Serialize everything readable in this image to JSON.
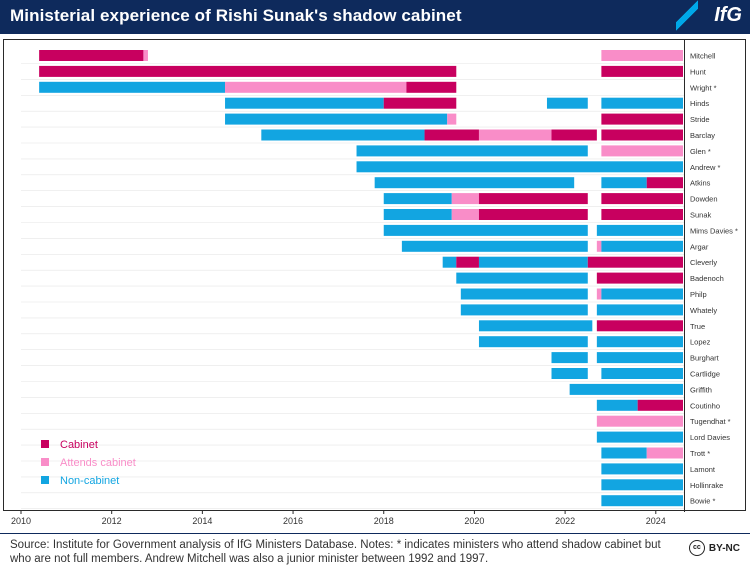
{
  "title": "Ministerial experience of Rishi Sunak's shadow cabinet",
  "logo": "IfG",
  "source": "Source: Institute for Government analysis of IfG Ministers Database. Notes: * indicates ministers who attend shadow cabinet but who are not full members. Andrew Mitchell was also a junior minister between 1992 and 1997.",
  "license": "BY-NC",
  "license_icon": "cc",
  "colors": {
    "Cabinet": "#c8005f",
    "Attends cabinet": "#f98dc8",
    "Non-cabinet": "#12a5e1"
  },
  "chart_data": {
    "type": "bar",
    "orientation": "horizontal-timeline",
    "title": "Ministerial experience of Rishi Sunak's shadow cabinet",
    "xlabel": "",
    "ylabel": "",
    "xlim": [
      2010,
      2025
    ],
    "xticks": [
      2010,
      2012,
      2014,
      2016,
      2018,
      2020,
      2022,
      2024
    ],
    "legend": [
      "Cabinet",
      "Attends cabinet",
      "Non-cabinet"
    ],
    "legend_position": "bottom-left",
    "rows": [
      {
        "name": "Mitchell",
        "segments": [
          [
            2010.4,
            2012.7,
            "Cabinet"
          ],
          [
            2012.7,
            2012.8,
            "Attends cabinet"
          ],
          [
            2022.8,
            2024.6,
            "Attends cabinet"
          ]
        ]
      },
      {
        "name": "Hunt",
        "segments": [
          [
            2010.4,
            2019.6,
            "Cabinet"
          ],
          [
            2022.8,
            2024.6,
            "Cabinet"
          ]
        ]
      },
      {
        "name": "Wright *",
        "segments": [
          [
            2010.4,
            2014.5,
            "Non-cabinet"
          ],
          [
            2014.5,
            2018.5,
            "Attends cabinet"
          ],
          [
            2018.5,
            2019.6,
            "Cabinet"
          ]
        ]
      },
      {
        "name": "Hinds",
        "segments": [
          [
            2014.5,
            2018.0,
            "Non-cabinet"
          ],
          [
            2018.0,
            2019.6,
            "Cabinet"
          ],
          [
            2021.6,
            2022.5,
            "Non-cabinet"
          ],
          [
            2022.8,
            2024.6,
            "Non-cabinet"
          ]
        ]
      },
      {
        "name": "Stride",
        "segments": [
          [
            2014.5,
            2019.4,
            "Non-cabinet"
          ],
          [
            2019.4,
            2019.6,
            "Attends cabinet"
          ],
          [
            2022.8,
            2024.6,
            "Cabinet"
          ]
        ]
      },
      {
        "name": "Barclay",
        "segments": [
          [
            2015.3,
            2018.9,
            "Non-cabinet"
          ],
          [
            2018.9,
            2020.1,
            "Cabinet"
          ],
          [
            2020.1,
            2021.7,
            "Attends cabinet"
          ],
          [
            2021.7,
            2022.7,
            "Cabinet"
          ],
          [
            2022.8,
            2024.6,
            "Cabinet"
          ]
        ]
      },
      {
        "name": "Glen *",
        "segments": [
          [
            2017.4,
            2022.5,
            "Non-cabinet"
          ],
          [
            2022.8,
            2024.6,
            "Attends cabinet"
          ]
        ]
      },
      {
        "name": "Andrew *",
        "segments": [
          [
            2017.4,
            2024.6,
            "Non-cabinet"
          ]
        ]
      },
      {
        "name": "Atkins",
        "segments": [
          [
            2017.8,
            2022.2,
            "Non-cabinet"
          ],
          [
            2022.8,
            2023.8,
            "Non-cabinet"
          ],
          [
            2023.8,
            2024.6,
            "Cabinet"
          ]
        ]
      },
      {
        "name": "Dowden",
        "segments": [
          [
            2018.0,
            2019.5,
            "Non-cabinet"
          ],
          [
            2019.5,
            2020.1,
            "Attends cabinet"
          ],
          [
            2020.1,
            2022.5,
            "Cabinet"
          ],
          [
            2022.8,
            2024.6,
            "Cabinet"
          ]
        ]
      },
      {
        "name": "Sunak",
        "segments": [
          [
            2018.0,
            2019.5,
            "Non-cabinet"
          ],
          [
            2019.5,
            2020.1,
            "Attends cabinet"
          ],
          [
            2020.1,
            2022.5,
            "Cabinet"
          ],
          [
            2022.8,
            2024.6,
            "Cabinet"
          ]
        ]
      },
      {
        "name": "Mims Davies *",
        "segments": [
          [
            2018.0,
            2022.5,
            "Non-cabinet"
          ],
          [
            2022.7,
            2024.6,
            "Non-cabinet"
          ]
        ]
      },
      {
        "name": "Argar",
        "segments": [
          [
            2018.4,
            2022.5,
            "Non-cabinet"
          ],
          [
            2022.7,
            2022.8,
            "Attends cabinet"
          ],
          [
            2022.8,
            2024.6,
            "Non-cabinet"
          ]
        ]
      },
      {
        "name": "Cleverly",
        "segments": [
          [
            2019.3,
            2019.6,
            "Non-cabinet"
          ],
          [
            2019.6,
            2020.1,
            "Cabinet"
          ],
          [
            2020.1,
            2022.5,
            "Non-cabinet"
          ],
          [
            2022.5,
            2024.6,
            "Cabinet"
          ]
        ]
      },
      {
        "name": "Badenoch",
        "segments": [
          [
            2019.6,
            2022.5,
            "Non-cabinet"
          ],
          [
            2022.7,
            2024.6,
            "Cabinet"
          ]
        ]
      },
      {
        "name": "Philp",
        "segments": [
          [
            2019.7,
            2022.5,
            "Non-cabinet"
          ],
          [
            2022.7,
            2022.8,
            "Attends cabinet"
          ],
          [
            2022.8,
            2024.6,
            "Non-cabinet"
          ]
        ]
      },
      {
        "name": "Whately",
        "segments": [
          [
            2019.7,
            2022.5,
            "Non-cabinet"
          ],
          [
            2022.7,
            2024.6,
            "Non-cabinet"
          ]
        ]
      },
      {
        "name": "True",
        "segments": [
          [
            2020.1,
            2022.6,
            "Non-cabinet"
          ],
          [
            2022.7,
            2024.6,
            "Cabinet"
          ]
        ]
      },
      {
        "name": "Lopez",
        "segments": [
          [
            2020.1,
            2022.5,
            "Non-cabinet"
          ],
          [
            2022.7,
            2024.6,
            "Non-cabinet"
          ]
        ]
      },
      {
        "name": "Burghart",
        "segments": [
          [
            2021.7,
            2022.5,
            "Non-cabinet"
          ],
          [
            2022.7,
            2024.6,
            "Non-cabinet"
          ]
        ]
      },
      {
        "name": "Cartlidge",
        "segments": [
          [
            2021.7,
            2022.5,
            "Non-cabinet"
          ],
          [
            2022.8,
            2024.6,
            "Non-cabinet"
          ]
        ]
      },
      {
        "name": "Griffith",
        "segments": [
          [
            2022.1,
            2024.6,
            "Non-cabinet"
          ]
        ]
      },
      {
        "name": "Coutinho",
        "segments": [
          [
            2022.7,
            2023.6,
            "Non-cabinet"
          ],
          [
            2023.6,
            2024.6,
            "Cabinet"
          ]
        ]
      },
      {
        "name": "Tugendhat *",
        "segments": [
          [
            2022.7,
            2024.6,
            "Attends cabinet"
          ]
        ]
      },
      {
        "name": "Lord Davies",
        "segments": [
          [
            2022.7,
            2024.6,
            "Non-cabinet"
          ]
        ]
      },
      {
        "name": "Trott *",
        "segments": [
          [
            2022.8,
            2023.8,
            "Non-cabinet"
          ],
          [
            2023.8,
            2024.6,
            "Attends cabinet"
          ]
        ]
      },
      {
        "name": "Lamont",
        "segments": [
          [
            2022.8,
            2024.6,
            "Non-cabinet"
          ]
        ]
      },
      {
        "name": "Hollinrake",
        "segments": [
          [
            2022.8,
            2024.6,
            "Non-cabinet"
          ]
        ]
      },
      {
        "name": "Bowie *",
        "segments": [
          [
            2022.8,
            2024.6,
            "Non-cabinet"
          ]
        ]
      }
    ]
  }
}
